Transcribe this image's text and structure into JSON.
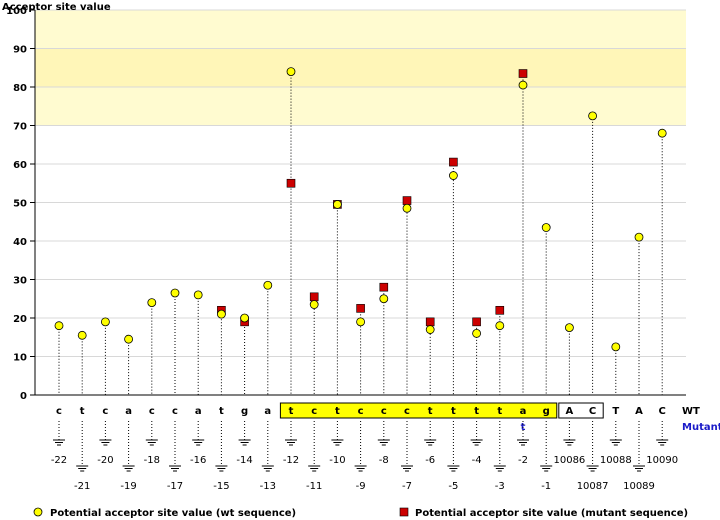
{
  "chart_data": {
    "type": "scatter",
    "ylabel": "Acceptor site value",
    "ylim": [
      0,
      100
    ],
    "yticks": [
      0,
      10,
      20,
      30,
      40,
      50,
      60,
      70,
      80,
      90,
      100
    ],
    "highlight_band": [
      70,
      100
    ],
    "row_labels": {
      "wt": "WT",
      "mutant": "Mutant"
    },
    "legend": {
      "wt": "Potential acceptor site value (wt sequence)",
      "mutant": "Potential acceptor site value (mutant sequence)"
    },
    "colors": {
      "wt": "#ffff00",
      "mutant": "#cc0000",
      "band": "#fffbd0",
      "highlight": "#ffff00",
      "mutant_text": "#1a1ac8"
    },
    "positions": [
      {
        "nt": "c",
        "pos": "-22",
        "wt": 18,
        "mut": null,
        "mutant_nt": "",
        "box": ""
      },
      {
        "nt": "t",
        "pos": "-21",
        "wt": 15.5,
        "mut": null,
        "mutant_nt": "",
        "box": ""
      },
      {
        "nt": "c",
        "pos": "-20",
        "wt": 19,
        "mut": null,
        "mutant_nt": "",
        "box": ""
      },
      {
        "nt": "a",
        "pos": "-19",
        "wt": 14.5,
        "mut": null,
        "mutant_nt": "",
        "box": ""
      },
      {
        "nt": "c",
        "pos": "-18",
        "wt": 24,
        "mut": null,
        "mutant_nt": "",
        "box": ""
      },
      {
        "nt": "c",
        "pos": "-17",
        "wt": 26.5,
        "mut": null,
        "mutant_nt": "",
        "box": ""
      },
      {
        "nt": "a",
        "pos": "-16",
        "wt": 26,
        "mut": null,
        "mutant_nt": "",
        "box": ""
      },
      {
        "nt": "t",
        "pos": "-15",
        "wt": 21,
        "mut": 22,
        "mutant_nt": "",
        "box": ""
      },
      {
        "nt": "g",
        "pos": "-14",
        "wt": 20,
        "mut": 19,
        "mutant_nt": "",
        "box": ""
      },
      {
        "nt": "a",
        "pos": "-13",
        "wt": 28.5,
        "mut": null,
        "mutant_nt": "",
        "box": ""
      },
      {
        "nt": "t",
        "pos": "-12",
        "wt": 84,
        "mut": 55,
        "mutant_nt": "",
        "box": "yellow"
      },
      {
        "nt": "c",
        "pos": "-11",
        "wt": 23.5,
        "mut": 25.5,
        "mutant_nt": "",
        "box": "yellow"
      },
      {
        "nt": "t",
        "pos": "-10",
        "wt": 49.5,
        "mut": 49.5,
        "mutant_nt": "",
        "box": "yellow"
      },
      {
        "nt": "c",
        "pos": "-9",
        "wt": 19,
        "mut": 22.5,
        "mutant_nt": "",
        "box": "yellow"
      },
      {
        "nt": "c",
        "pos": "-8",
        "wt": 25,
        "mut": 28,
        "mutant_nt": "",
        "box": "yellow"
      },
      {
        "nt": "c",
        "pos": "-7",
        "wt": 48.5,
        "mut": 50.5,
        "mutant_nt": "",
        "box": "yellow"
      },
      {
        "nt": "t",
        "pos": "-6",
        "wt": 17,
        "mut": 19,
        "mutant_nt": "",
        "box": "yellow"
      },
      {
        "nt": "t",
        "pos": "-5",
        "wt": 57,
        "mut": 60.5,
        "mutant_nt": "",
        "box": "yellow"
      },
      {
        "nt": "t",
        "pos": "-4",
        "wt": 16,
        "mut": 19,
        "mutant_nt": "",
        "box": "yellow"
      },
      {
        "nt": "t",
        "pos": "-3",
        "wt": 18,
        "mut": 22,
        "mutant_nt": "",
        "box": "yellow"
      },
      {
        "nt": "a",
        "pos": "-2",
        "wt": 80.5,
        "mut": 83.5,
        "mutant_nt": "t",
        "box": "yellow"
      },
      {
        "nt": "g",
        "pos": "-1",
        "wt": 43.5,
        "mut": null,
        "mutant_nt": "",
        "box": "yellow"
      },
      {
        "nt": "A",
        "pos": "10086",
        "wt": 17.5,
        "mut": null,
        "mutant_nt": "",
        "box": "white"
      },
      {
        "nt": "C",
        "pos": "10087",
        "wt": 72.5,
        "mut": null,
        "mutant_nt": "",
        "box": "white"
      },
      {
        "nt": "T",
        "pos": "10088",
        "wt": 12.5,
        "mut": null,
        "mutant_nt": "",
        "box": ""
      },
      {
        "nt": "A",
        "pos": "10089",
        "wt": 41,
        "mut": null,
        "mutant_nt": "",
        "box": ""
      },
      {
        "nt": "C",
        "pos": "10090",
        "wt": 68,
        "mut": null,
        "mutant_nt": "",
        "box": ""
      }
    ]
  }
}
